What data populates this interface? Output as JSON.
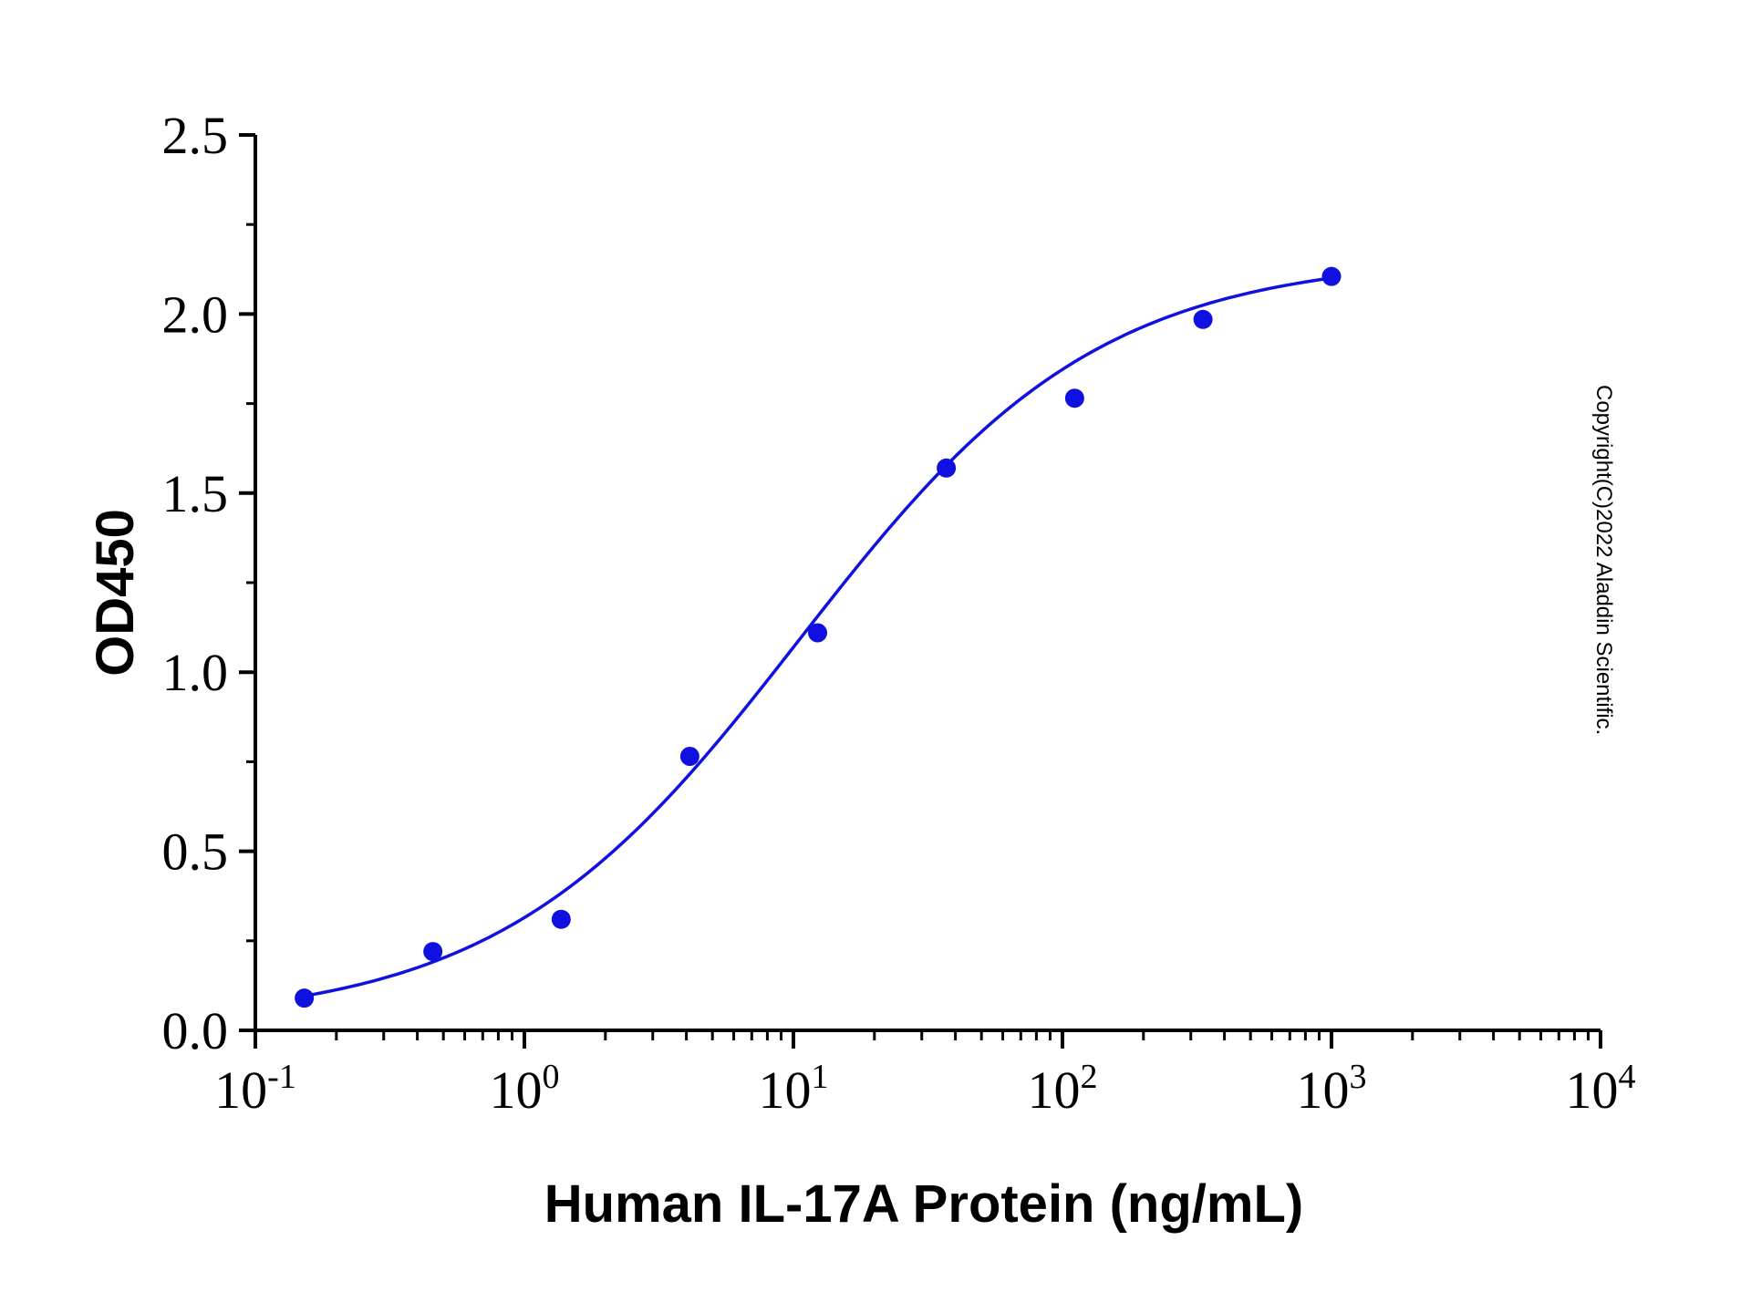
{
  "chart_data": {
    "type": "scatter",
    "x_scale": "log",
    "xlim": [
      0.1,
      10000
    ],
    "ylim": [
      0,
      2.5
    ],
    "xlabel": "Human IL-17A Protein (ng/mL)",
    "ylabel": "OD450",
    "y_ticks": [
      "0.0",
      "0.5",
      "1.0",
      "1.5",
      "2.0",
      "2.5"
    ],
    "x_ticks": [
      {
        "base": "10",
        "exp": "-1"
      },
      {
        "base": "10",
        "exp": "0"
      },
      {
        "base": "10",
        "exp": "1"
      },
      {
        "base": "10",
        "exp": "2"
      },
      {
        "base": "10",
        "exp": "3"
      },
      {
        "base": "10",
        "exp": "4"
      }
    ],
    "points": [
      {
        "x": 0.152,
        "y": 0.09
      },
      {
        "x": 0.457,
        "y": 0.22
      },
      {
        "x": 1.37,
        "y": 0.31
      },
      {
        "x": 4.12,
        "y": 0.765
      },
      {
        "x": 12.3,
        "y": 1.11
      },
      {
        "x": 37.0,
        "y": 1.57
      },
      {
        "x": 111,
        "y": 1.765
      },
      {
        "x": 333,
        "y": 1.985
      },
      {
        "x": 1000,
        "y": 2.105
      }
    ],
    "fit": {
      "model": "4PL",
      "bottom": 0.02,
      "top": 2.16,
      "ec50": 10.5,
      "hill": 0.78,
      "x_range": [
        0.152,
        1000
      ]
    },
    "grid": false,
    "legend": "none",
    "color": "#1010e0",
    "copyright": "Copyright(C)2022 Aladdin Scientific."
  }
}
